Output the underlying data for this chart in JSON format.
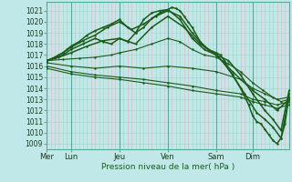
{
  "bg_color": "#c0e8e8",
  "grid_color_h": "#a8d8d8",
  "grid_color_v": "#d8b8b8",
  "line_color": "#1a5c1a",
  "ylabel_ticks": [
    1009,
    1010,
    1011,
    1012,
    1013,
    1014,
    1015,
    1016,
    1017,
    1018,
    1019,
    1020,
    1021
  ],
  "ylim": [
    1008.5,
    1021.8
  ],
  "xlabel": "Pression niveau de la mer( hPa )",
  "day_labels": [
    "Mer",
    "Lun",
    "Jeu",
    "Ven",
    "Sam",
    "Dim"
  ],
  "day_positions": [
    0,
    30,
    90,
    150,
    210,
    255
  ],
  "day_sep_positions": [
    0,
    30,
    90,
    150,
    210,
    255
  ],
  "xlim": [
    0,
    300
  ],
  "lines": [
    {
      "x": [
        0,
        5,
        10,
        15,
        20,
        25,
        30,
        40,
        50,
        60,
        70,
        80,
        90,
        100,
        110,
        120,
        130,
        140,
        150,
        155,
        160,
        165,
        170,
        175,
        180,
        190,
        200,
        210,
        215,
        220,
        225,
        230,
        240,
        250,
        255,
        260,
        265,
        270,
        275,
        280,
        285,
        290,
        295,
        300
      ],
      "y": [
        1016.5,
        1016.6,
        1016.8,
        1017.0,
        1017.2,
        1017.5,
        1017.8,
        1018.2,
        1018.8,
        1019.2,
        1019.5,
        1019.8,
        1020.2,
        1019.5,
        1019.0,
        1019.5,
        1020.3,
        1020.8,
        1021.1,
        1021.3,
        1021.2,
        1021.0,
        1020.5,
        1020.0,
        1019.5,
        1018.2,
        1017.5,
        1017.2,
        1017.0,
        1016.5,
        1015.8,
        1015.2,
        1014.0,
        1012.5,
        1011.5,
        1011.0,
        1010.8,
        1010.3,
        1009.8,
        1009.3,
        1009.0,
        1009.5,
        1010.8,
        1013.5
      ]
    },
    {
      "x": [
        0,
        10,
        20,
        30,
        45,
        60,
        75,
        90,
        105,
        120,
        135,
        150,
        165,
        180,
        195,
        210,
        220,
        230,
        245,
        260,
        270,
        280,
        290,
        300
      ],
      "y": [
        1016.5,
        1016.8,
        1017.2,
        1017.7,
        1018.3,
        1018.8,
        1019.5,
        1020.0,
        1019.3,
        1019.8,
        1020.5,
        1021.0,
        1020.5,
        1019.0,
        1017.8,
        1017.0,
        1016.2,
        1015.2,
        1013.5,
        1011.8,
        1011.2,
        1010.5,
        1009.5,
        1013.2
      ]
    },
    {
      "x": [
        0,
        10,
        20,
        30,
        45,
        60,
        70,
        80,
        90,
        100,
        110,
        120,
        130,
        140,
        150,
        165,
        180,
        195,
        210,
        225,
        240,
        255,
        265,
        270,
        280,
        290,
        300
      ],
      "y": [
        1016.5,
        1016.7,
        1017.0,
        1017.5,
        1018.0,
        1018.5,
        1018.2,
        1018.0,
        1018.5,
        1018.2,
        1019.0,
        1020.2,
        1020.8,
        1021.0,
        1021.1,
        1020.2,
        1018.5,
        1017.5,
        1017.0,
        1016.5,
        1015.2,
        1013.5,
        1012.5,
        1012.0,
        1011.2,
        1010.2,
        1013.8
      ]
    },
    {
      "x": [
        0,
        15,
        30,
        50,
        70,
        90,
        110,
        130,
        150,
        170,
        190,
        210,
        230,
        255,
        270,
        285,
        300
      ],
      "y": [
        1016.5,
        1016.8,
        1017.2,
        1017.8,
        1018.3,
        1018.5,
        1018.0,
        1019.5,
        1020.5,
        1019.5,
        1018.0,
        1017.0,
        1015.5,
        1013.8,
        1013.0,
        1012.0,
        1013.0
      ]
    },
    {
      "x": [
        0,
        20,
        40,
        60,
        80,
        90,
        110,
        130,
        150,
        165,
        180,
        195,
        210,
        225,
        240,
        255,
        268,
        280,
        290,
        300
      ],
      "y": [
        1016.5,
        1016.6,
        1016.7,
        1016.8,
        1017.0,
        1017.2,
        1017.5,
        1018.0,
        1018.5,
        1018.2,
        1017.5,
        1017.0,
        1016.8,
        1016.2,
        1015.5,
        1014.5,
        1013.8,
        1013.2,
        1012.8,
        1013.0
      ]
    },
    {
      "x": [
        0,
        30,
        60,
        90,
        120,
        150,
        180,
        210,
        240,
        255,
        270,
        285,
        300
      ],
      "y": [
        1016.3,
        1016.0,
        1015.8,
        1016.0,
        1015.8,
        1016.0,
        1015.8,
        1015.5,
        1014.8,
        1014.0,
        1013.5,
        1013.0,
        1013.2
      ]
    },
    {
      "x": [
        0,
        30,
        60,
        90,
        120,
        150,
        180,
        210,
        240,
        255,
        270,
        285,
        300
      ],
      "y": [
        1016.0,
        1015.5,
        1015.2,
        1015.0,
        1014.8,
        1014.5,
        1014.2,
        1013.8,
        1013.5,
        1013.0,
        1012.8,
        1012.5,
        1012.8
      ]
    },
    {
      "x": [
        0,
        30,
        60,
        90,
        120,
        150,
        180,
        210,
        240,
        255,
        270,
        285,
        300
      ],
      "y": [
        1015.8,
        1015.3,
        1015.0,
        1014.8,
        1014.5,
        1014.2,
        1013.8,
        1013.5,
        1013.2,
        1012.8,
        1012.5,
        1012.2,
        1012.5
      ]
    }
  ]
}
